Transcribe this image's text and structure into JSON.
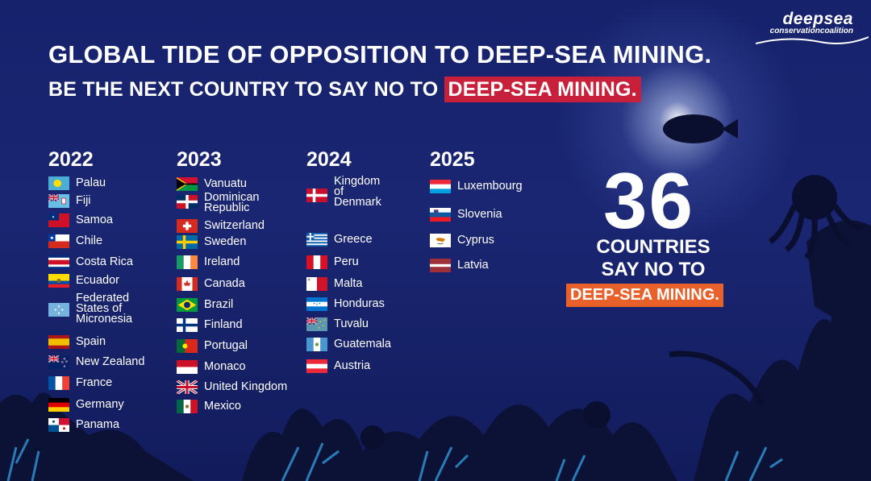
{
  "logo": {
    "line1": "deepsea",
    "line2": "conservationcoalition"
  },
  "title": "GLOBAL TIDE OF OPPOSITION TO DEEP-SEA MINING.",
  "subtitle": {
    "prefix": "BE THE NEXT COUNTRY TO SAY NO TO ",
    "highlight": "DEEP-SEA MINING."
  },
  "columns": [
    {
      "year": "2022",
      "countries": [
        {
          "name": "Palau",
          "flag": "palau"
        },
        {
          "name": "Fiji",
          "flag": "fiji"
        },
        {
          "name": "Samoa",
          "flag": "samoa"
        },
        {
          "name": "Chile",
          "flag": "chile"
        },
        {
          "name": "Costa Rica",
          "flag": "costa-rica"
        },
        {
          "name": "Ecuador",
          "flag": "ecuador"
        },
        {
          "name": "Federated States of Micronesia",
          "flag": "micronesia"
        },
        {
          "name": "Spain",
          "flag": "spain"
        },
        {
          "name": "New Zealand",
          "flag": "new-zealand"
        },
        {
          "name": "France",
          "flag": "france"
        },
        {
          "name": "Germany",
          "flag": "germany"
        },
        {
          "name": "Panama",
          "flag": "panama"
        }
      ]
    },
    {
      "year": "2023",
      "countries": [
        {
          "name": "Vanuatu",
          "flag": "vanuatu"
        },
        {
          "name": "Dominican Republic",
          "flag": "dominican-republic"
        },
        {
          "name": "Switzerland",
          "flag": "switzerland"
        },
        {
          "name": "Sweden",
          "flag": "sweden"
        },
        {
          "name": "Ireland",
          "flag": "ireland"
        },
        {
          "name": "Canada",
          "flag": "canada"
        },
        {
          "name": "Brazil",
          "flag": "brazil"
        },
        {
          "name": "Finland",
          "flag": "finland"
        },
        {
          "name": "Portugal",
          "flag": "portugal"
        },
        {
          "name": "Monaco",
          "flag": "monaco"
        },
        {
          "name": "United Kingdom",
          "flag": "united-kingdom"
        },
        {
          "name": "Mexico",
          "flag": "mexico"
        }
      ]
    },
    {
      "year": "2024",
      "countries": [
        {
          "name": "Kingdom of Denmark",
          "flag": "denmark"
        },
        {
          "name": "Greece",
          "flag": "greece"
        },
        {
          "name": "Peru",
          "flag": "peru"
        },
        {
          "name": "Malta",
          "flag": "malta"
        },
        {
          "name": "Honduras",
          "flag": "honduras"
        },
        {
          "name": "Tuvalu",
          "flag": "tuvalu"
        },
        {
          "name": "Guatemala",
          "flag": "guatemala"
        },
        {
          "name": "Austria",
          "flag": "austria"
        }
      ]
    },
    {
      "year": "2025",
      "countries": [
        {
          "name": "Luxembourg",
          "flag": "luxembourg"
        },
        {
          "name": "Slovenia",
          "flag": "slovenia"
        },
        {
          "name": "Cyprus",
          "flag": "cyprus"
        },
        {
          "name": "Latvia",
          "flag": "latvia"
        }
      ]
    }
  ],
  "stat": {
    "number": "36",
    "line1": "COUNTRIES",
    "line2": "SAY NO TO",
    "highlight": "DEEP-SEA MINING."
  },
  "colors": {
    "background": "#16226c",
    "title_highlight": "#c8203a",
    "stat_highlight": "#e8602a",
    "coral": "#0c1236",
    "coral_accent": "#3fa7d6"
  }
}
